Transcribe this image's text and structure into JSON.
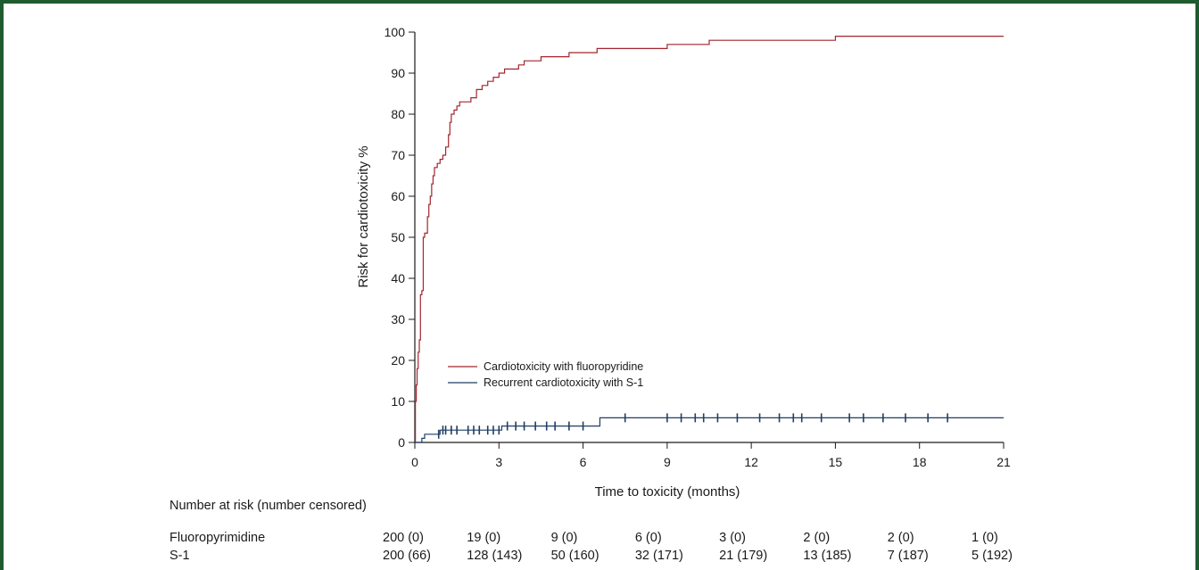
{
  "colors": {
    "frame": "#1e5b2e",
    "fluoro": "#a3262e",
    "s1": "#1f3f63",
    "axis": "#1a1a1a"
  },
  "chart_data": {
    "type": "line",
    "xlabel": "Time to toxicity (months)",
    "ylabel": "Risk for cardiotoxicity %",
    "xlim": [
      0,
      21
    ],
    "ylim": [
      0,
      100
    ],
    "xticks": [
      "0",
      "3",
      "6",
      "9",
      "12",
      "15",
      "18",
      "21"
    ],
    "yticks": [
      "0",
      "10",
      "20",
      "30",
      "40",
      "50",
      "60",
      "70",
      "80",
      "90",
      "100"
    ],
    "legend_position": "lower-left (inside)",
    "series": [
      {
        "name": "Cardiotoxicity with fluoropyridine",
        "color": "#a3262e",
        "step": true,
        "points": [
          [
            0,
            0
          ],
          [
            0.02,
            10
          ],
          [
            0.05,
            14
          ],
          [
            0.08,
            18
          ],
          [
            0.12,
            22
          ],
          [
            0.16,
            25
          ],
          [
            0.2,
            36
          ],
          [
            0.25,
            37
          ],
          [
            0.3,
            50
          ],
          [
            0.35,
            51
          ],
          [
            0.45,
            55
          ],
          [
            0.5,
            58
          ],
          [
            0.55,
            60
          ],
          [
            0.6,
            63
          ],
          [
            0.65,
            65
          ],
          [
            0.7,
            67
          ],
          [
            0.8,
            68
          ],
          [
            0.9,
            69
          ],
          [
            1.0,
            70
          ],
          [
            1.1,
            72
          ],
          [
            1.2,
            75
          ],
          [
            1.25,
            78
          ],
          [
            1.3,
            80
          ],
          [
            1.4,
            81
          ],
          [
            1.5,
            82
          ],
          [
            1.6,
            83
          ],
          [
            1.8,
            83
          ],
          [
            2.0,
            84
          ],
          [
            2.2,
            86
          ],
          [
            2.4,
            87
          ],
          [
            2.6,
            88
          ],
          [
            2.8,
            89
          ],
          [
            3.0,
            90
          ],
          [
            3.2,
            91
          ],
          [
            3.5,
            91
          ],
          [
            3.7,
            92
          ],
          [
            3.9,
            93
          ],
          [
            4.2,
            93
          ],
          [
            4.5,
            94
          ],
          [
            5.0,
            94
          ],
          [
            5.5,
            95
          ],
          [
            6.0,
            95
          ],
          [
            6.5,
            96
          ],
          [
            7.5,
            96
          ],
          [
            8.5,
            96
          ],
          [
            9.0,
            97
          ],
          [
            10.0,
            97
          ],
          [
            10.5,
            98
          ],
          [
            12.0,
            98
          ],
          [
            15.0,
            99
          ],
          [
            18.0,
            99
          ],
          [
            21.0,
            99
          ]
        ]
      },
      {
        "name": "Recurrent cardiotoxicity with S-1",
        "color": "#1f3f63",
        "step": true,
        "points": [
          [
            0,
            0
          ],
          [
            0.2,
            0
          ],
          [
            0.25,
            1
          ],
          [
            0.3,
            1
          ],
          [
            0.35,
            2
          ],
          [
            0.8,
            2
          ],
          [
            0.9,
            3
          ],
          [
            3.0,
            3
          ],
          [
            3.1,
            4
          ],
          [
            6.5,
            4
          ],
          [
            6.6,
            6
          ],
          [
            21,
            6
          ]
        ],
        "censor_ticks": [
          0.85,
          1.0,
          1.1,
          1.3,
          1.5,
          1.9,
          2.1,
          2.3,
          2.6,
          2.8,
          3.0,
          3.3,
          3.6,
          3.9,
          4.3,
          4.7,
          5.0,
          5.5,
          6.0,
          7.5,
          9.0,
          9.5,
          10.0,
          10.3,
          10.8,
          11.5,
          12.3,
          13.0,
          13.5,
          13.8,
          14.5,
          15.5,
          16.0,
          16.7,
          17.5,
          18.3,
          19.0
        ]
      }
    ],
    "risk_table": {
      "header": "Number at risk (number censored)",
      "rows": [
        {
          "label": "Fluoropyrimidine",
          "values": [
            "200 (0)",
            "19 (0)",
            "9 (0)",
            "6 (0)",
            "3 (0)",
            "2 (0)",
            "2 (0)",
            "1 (0)"
          ]
        },
        {
          "label": "S-1",
          "values": [
            "200 (66)",
            "128 (143)",
            "50 (160)",
            "32 (171)",
            "21 (179)",
            "13 (185)",
            "7 (187)",
            "5 (192)"
          ]
        }
      ]
    }
  }
}
